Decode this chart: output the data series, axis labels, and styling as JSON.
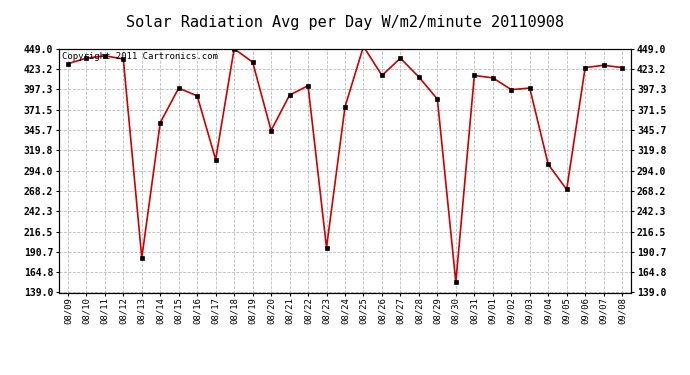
{
  "title": "Solar Radiation Avg per Day W/m2/minute 20110908",
  "copyright_text": "Copyright 2011 Cartronics.com",
  "x_labels": [
    "08/09",
    "08/10",
    "08/11",
    "08/12",
    "08/13",
    "08/14",
    "08/15",
    "08/16",
    "08/17",
    "08/18",
    "08/19",
    "08/20",
    "08/21",
    "08/22",
    "08/23",
    "08/24",
    "08/25",
    "08/26",
    "08/27",
    "08/28",
    "08/29",
    "08/30",
    "08/31",
    "09/01",
    "09/02",
    "09/03",
    "09/04",
    "09/05",
    "09/06",
    "09/07",
    "09/08"
  ],
  "y_values": [
    430,
    437,
    440,
    436,
    183,
    355,
    399,
    389,
    308,
    449,
    432,
    345,
    390,
    402,
    196,
    375,
    452,
    415,
    437,
    413,
    385,
    152,
    415,
    412,
    397,
    399,
    302,
    270,
    425,
    428,
    425
  ],
  "y_ticks": [
    139.0,
    164.8,
    190.7,
    216.5,
    242.3,
    268.2,
    294.0,
    319.8,
    345.7,
    371.5,
    397.3,
    423.2,
    449.0
  ],
  "line_color": "#cc0000",
  "marker_color": "#000000",
  "bg_color": "#ffffff",
  "grid_color": "#bbbbbb",
  "title_fontsize": 11,
  "copyright_fontsize": 6.5
}
